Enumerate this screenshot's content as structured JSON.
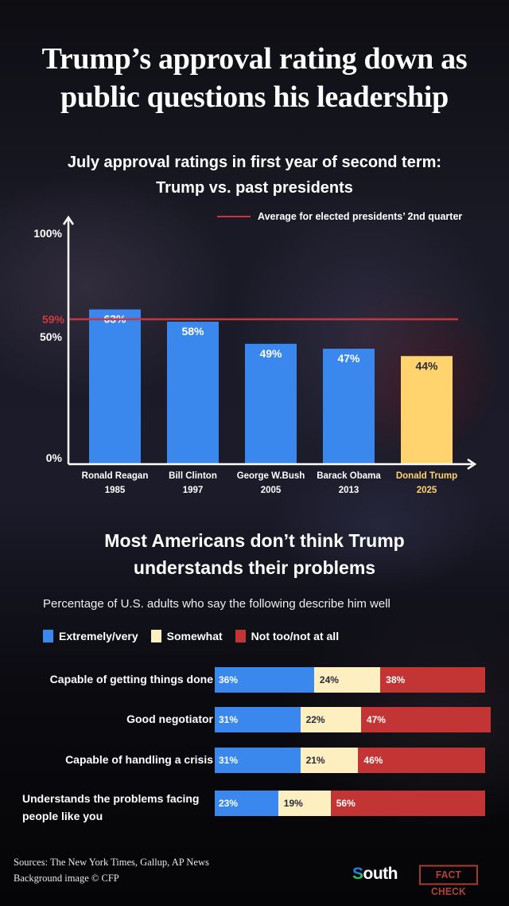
{
  "header": {
    "title_line1": "Trump’s approval rating down as",
    "title_line2": "public questions his leadership"
  },
  "colors": {
    "blue": "#3a87ee",
    "trump_bar": "#ffd36e",
    "average_line": "#c8363a",
    "average_label": "#d03a3e",
    "somewhat": "#fdefc0",
    "not_at_all": "#c33434",
    "trump_label": "#ffd36e",
    "dark_text": "#2a2a3a"
  },
  "chart_data": [
    {
      "type": "bar",
      "title": "July approval ratings in first year of second term:",
      "subtitle": "Trump vs. past presidents",
      "categories": [
        "Ronald Reagan",
        "Bill Clinton",
        "George W.Bush",
        "Barack Obama",
        "Donald Trump"
      ],
      "years": [
        "1985",
        "1997",
        "2005",
        "2013",
        "2025"
      ],
      "values": [
        63,
        58,
        49,
        47,
        44
      ],
      "value_labels": [
        "63%",
        "58%",
        "49%",
        "47%",
        "44%"
      ],
      "highlight_index": 4,
      "ylim": [
        0,
        100
      ],
      "yticks": [
        {
          "value": 0,
          "label": "0%"
        },
        {
          "value": 50,
          "label": "50%"
        },
        {
          "value": 100,
          "label": "100%"
        }
      ],
      "reference_line": {
        "value": 59,
        "label": "59%",
        "legend": "Average for elected presidents’ 2nd quarter"
      },
      "legend_position": "top-right",
      "xlabel": "",
      "ylabel": ""
    },
    {
      "type": "bar",
      "orientation": "horizontal",
      "stacked": true,
      "title": "Most Americans don’t think Trump understands their problems",
      "subtitle": "Percentage of U.S. adults who say the following describe him well",
      "legend": [
        "Extremely/very",
        "Somewhat",
        "Not too/not at all"
      ],
      "legend_position": "top-left",
      "categories": [
        "Capable of getting things done",
        "Good negotiator",
        "Capable of handling a crisis",
        "Understands the problems facing people like you"
      ],
      "series": [
        {
          "name": "Extremely/very",
          "values": [
            36,
            31,
            31,
            23
          ]
        },
        {
          "name": "Somewhat",
          "values": [
            24,
            22,
            21,
            19
          ]
        },
        {
          "name": "Not too/not at all",
          "values": [
            38,
            47,
            46,
            56
          ]
        }
      ]
    }
  ],
  "footer": {
    "sources": "Sources: The New York Times, Gallup, AP News",
    "credit": "Background image © CFP",
    "brand_s": "S",
    "brand_rest": "outh",
    "stamp": "FACT CHECK"
  }
}
